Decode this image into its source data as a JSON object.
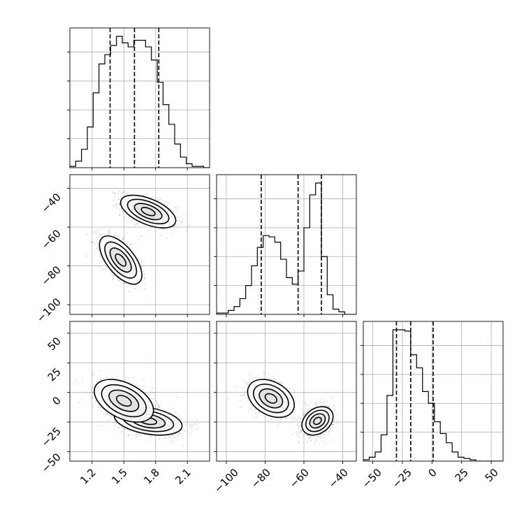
{
  "chart_data": {
    "type": "corner",
    "params": [
      {
        "ticks": [
          1.2,
          1.5,
          1.8,
          2.1
        ],
        "range": [
          0.99,
          2.31
        ]
      },
      {
        "ticks": [
          -100,
          -80,
          -60,
          -40
        ],
        "range": [
          -105,
          -33
        ]
      },
      {
        "ticks": [
          -50,
          -25,
          0,
          25,
          50
        ],
        "range": [
          -58,
          60
        ]
      }
    ],
    "quantiles": [
      [
        1.37,
        1.6,
        1.83
      ],
      [
        -82,
        -63,
        -51
      ],
      [
        -30,
        -18,
        1
      ]
    ],
    "histograms": [
      {
        "edges": [
          0.99,
          1.045,
          1.1,
          1.155,
          1.21,
          1.265,
          1.32,
          1.375,
          1.43,
          1.485,
          1.54,
          1.595,
          1.65,
          1.705,
          1.76,
          1.815,
          1.87,
          1.925,
          1.98,
          2.035,
          2.09,
          2.145,
          2.2,
          2.255,
          2.31
        ],
        "counts": [
          0.01,
          0.05,
          0.14,
          0.31,
          0.57,
          0.79,
          0.86,
          0.93,
          1.0,
          0.95,
          0.92,
          0.97,
          0.97,
          0.92,
          0.82,
          0.65,
          0.48,
          0.33,
          0.18,
          0.08,
          0.03,
          0.01,
          0.01,
          0.0
        ]
      },
      {
        "edges": [
          -105,
          -102,
          -99,
          -96,
          -93,
          -90,
          -87,
          -84,
          -81,
          -78,
          -75,
          -72,
          -69,
          -66,
          -63,
          -60,
          -57,
          -54,
          -51,
          -48,
          -45,
          -42,
          -39,
          -36,
          -33
        ],
        "counts": [
          0.01,
          0.01,
          0.03,
          0.06,
          0.12,
          0.22,
          0.37,
          0.51,
          0.6,
          0.59,
          0.55,
          0.42,
          0.28,
          0.23,
          0.33,
          0.66,
          0.91,
          1.0,
          0.44,
          0.15,
          0.04,
          0.02,
          0.0,
          0.0
        ]
      },
      {
        "edges": [
          -58,
          -53,
          -48,
          -43,
          -38,
          -33,
          -28,
          -23,
          -18,
          -13,
          -8,
          -3,
          2,
          7,
          12,
          17,
          22,
          27,
          32,
          37,
          42,
          47,
          52,
          57,
          62
        ],
        "counts": [
          0.01,
          0.03,
          0.07,
          0.2,
          0.5,
          1.0,
          1.0,
          0.99,
          0.81,
          0.71,
          0.53,
          0.44,
          0.3,
          0.21,
          0.14,
          0.07,
          0.03,
          0.02,
          0.01,
          0.0,
          0.0,
          0.0,
          0.0,
          0.0
        ]
      }
    ],
    "joint": [
      {
        "x": 0,
        "y": 1,
        "modes": [
          {
            "cx": 1.73,
            "cy": -52,
            "sx": 0.13,
            "sy": 4.2,
            "rho": -0.55,
            "weight": 0.55
          },
          {
            "cx": 1.47,
            "cy": -77,
            "sx": 0.1,
            "sy": 6.2,
            "rho": -0.62,
            "weight": 0.45
          }
        ]
      },
      {
        "x": 0,
        "y": 2,
        "modes": [
          {
            "cx": 1.73,
            "cy": -24,
            "sx": 0.16,
            "sy": 6.0,
            "rho": -0.35,
            "weight": 0.55
          },
          {
            "cx": 1.5,
            "cy": -7,
            "sx": 0.14,
            "sy": 9.0,
            "rho": -0.45,
            "weight": 0.45
          }
        ]
      },
      {
        "x": 1,
        "y": 2,
        "modes": [
          {
            "cx": -53,
            "cy": -24,
            "sx": 4.0,
            "sy": 6.0,
            "rho": 0.3,
            "weight": 0.55
          },
          {
            "cx": -77,
            "cy": -5,
            "sx": 6.0,
            "sy": 8.0,
            "rho": -0.35,
            "weight": 0.45
          }
        ]
      }
    ]
  },
  "tick_labels": {
    "p0": [
      "1.2",
      "1.5",
      "1.8",
      "2.1"
    ],
    "p1": [
      "−100",
      "−80",
      "−60",
      "−40"
    ],
    "p2": [
      "−50",
      "−25",
      "0",
      "25",
      "50"
    ]
  }
}
